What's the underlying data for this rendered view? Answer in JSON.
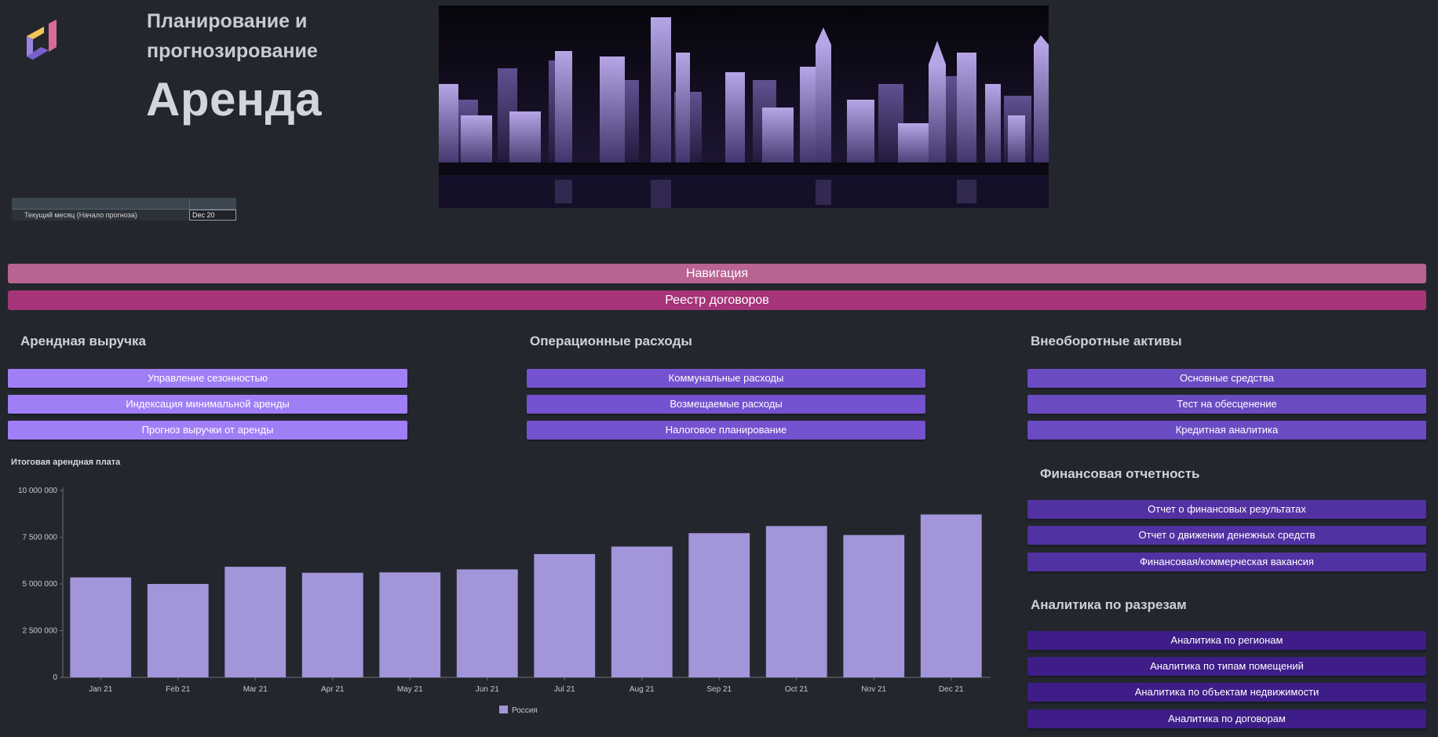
{
  "header": {
    "subtitle": "Планирование и прогнозирование",
    "title": "Аренда"
  },
  "month_table": {
    "label": "Текущий месяц (Начало прогноза)",
    "value": "Dec 20"
  },
  "nav": {
    "navigation_label": "Навигация",
    "registry_label": "Реестр договоров"
  },
  "sections": {
    "rent_revenue": {
      "title": "Арендная выручка",
      "buttons": [
        "Управление сезонностью",
        "Индексация минимальной аренды",
        "Прогноз выручки от аренды"
      ]
    },
    "operating_expenses": {
      "title": "Операционные расходы",
      "buttons": [
        "Коммунальные расходы",
        "Возмещаемые расходы",
        "Налоговое планирование"
      ]
    },
    "fixed_assets": {
      "title": "Внеоборотные активы",
      "buttons": [
        "Основные средства",
        "Тест на обесценение",
        "Кредитная аналитика"
      ]
    },
    "financial_reporting": {
      "title": "Финансовая отчетность",
      "buttons": [
        "Отчет о финансовых результатах",
        "Отчет о движении денежных средств",
        "Финансовая/коммерческая вакансия"
      ]
    },
    "analytics": {
      "title": "Аналитика по разрезам",
      "buttons": [
        "Аналитика по регионам",
        "Аналитика по типам помещений",
        "Аналитика по объектам недвижимости",
        "Аналитика по договорам"
      ]
    }
  },
  "colors": {
    "background": "#23272d",
    "navigation": "#b96391",
    "registry": "#a53478",
    "bar": "#a395d9"
  },
  "chart_data": {
    "type": "bar",
    "title": "Итоговая арендная плата",
    "categories": [
      "Jan 21",
      "Feb 21",
      "Mar 21",
      "Apr 21",
      "May 21",
      "Jun 21",
      "Jul 21",
      "Aug 21",
      "Sep 21",
      "Oct 21",
      "Nov 21",
      "Dec 21"
    ],
    "series": [
      {
        "name": "Россия",
        "values": [
          5350000,
          5000000,
          5920000,
          5600000,
          5620000,
          5780000,
          6600000,
          7000000,
          7720000,
          8100000,
          7620000,
          8720000
        ]
      }
    ],
    "yticks": [
      "0",
      "2 500 000",
      "5 000 000",
      "7 500 000",
      "10 000 000"
    ],
    "ylim": [
      0,
      10000000
    ],
    "grid": false,
    "legend": "bottom-center"
  }
}
